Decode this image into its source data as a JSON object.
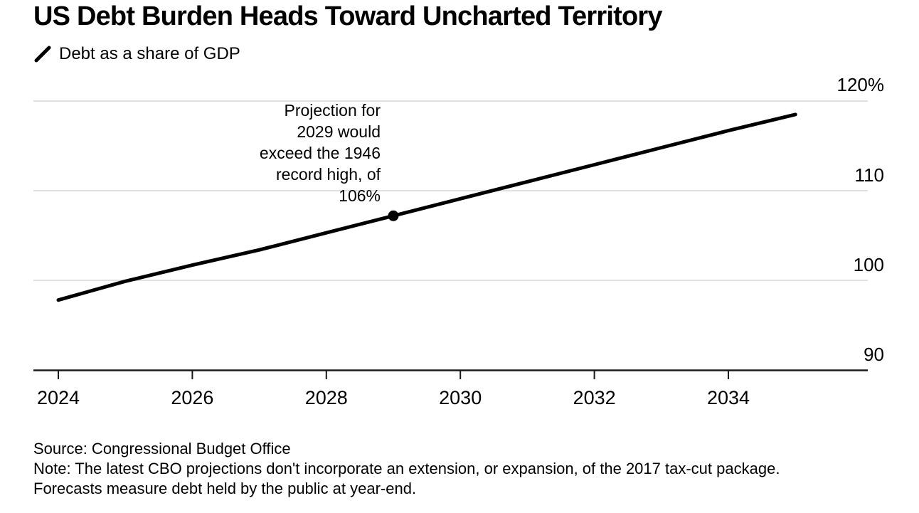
{
  "header": {
    "title": "US Debt Burden Heads Toward Uncharted Territory",
    "legend": {
      "label": "Debt as a share of GDP",
      "icon": "diagonal-line-series-icon",
      "color": "#000000"
    }
  },
  "annotation": {
    "lines": [
      "Projection for",
      "2029 would",
      "exceed the 1946",
      "record high, of",
      "106%"
    ]
  },
  "chart_data": {
    "type": "line",
    "title": "US Debt Burden Heads Toward Uncharted Territory",
    "subtitle_legend": "Debt as a share of GDP",
    "xlabel": "",
    "ylabel": "Debt as a share of GDP (%)",
    "xlim": [
      2024,
      2035.5
    ],
    "ylim": [
      90,
      120
    ],
    "grid": "horizontal",
    "legend_position": "top-left",
    "line_color": "#000000",
    "gridline_color": "#e0e0e0",
    "series": [
      {
        "name": "Debt as a share of GDP",
        "x": [
          2024,
          2025,
          2026,
          2027,
          2028,
          2029,
          2030,
          2031,
          2032,
          2033,
          2034,
          2035
        ],
        "values": [
          97.8,
          99.9,
          101.7,
          103.4,
          105.3,
          107.2,
          109.1,
          111.0,
          112.9,
          114.8,
          116.7,
          118.5
        ]
      }
    ],
    "marker": {
      "year": 2029,
      "value": 107.2,
      "note": "Projection for 2029 would exceed the 1946 record high, of 106%"
    },
    "x_tick_labels": [
      "2024",
      "2026",
      "2028",
      "2030",
      "2032",
      "2034"
    ],
    "y_tick_labels": [
      "120%",
      "110",
      "100",
      "90"
    ]
  },
  "footer": {
    "source": "Source: Congressional Budget Office",
    "note": "Note: The latest CBO projections don't incorporate an extension, or expansion, of the 2017 tax-cut package. Forecasts measure debt held by the public at year-end."
  }
}
